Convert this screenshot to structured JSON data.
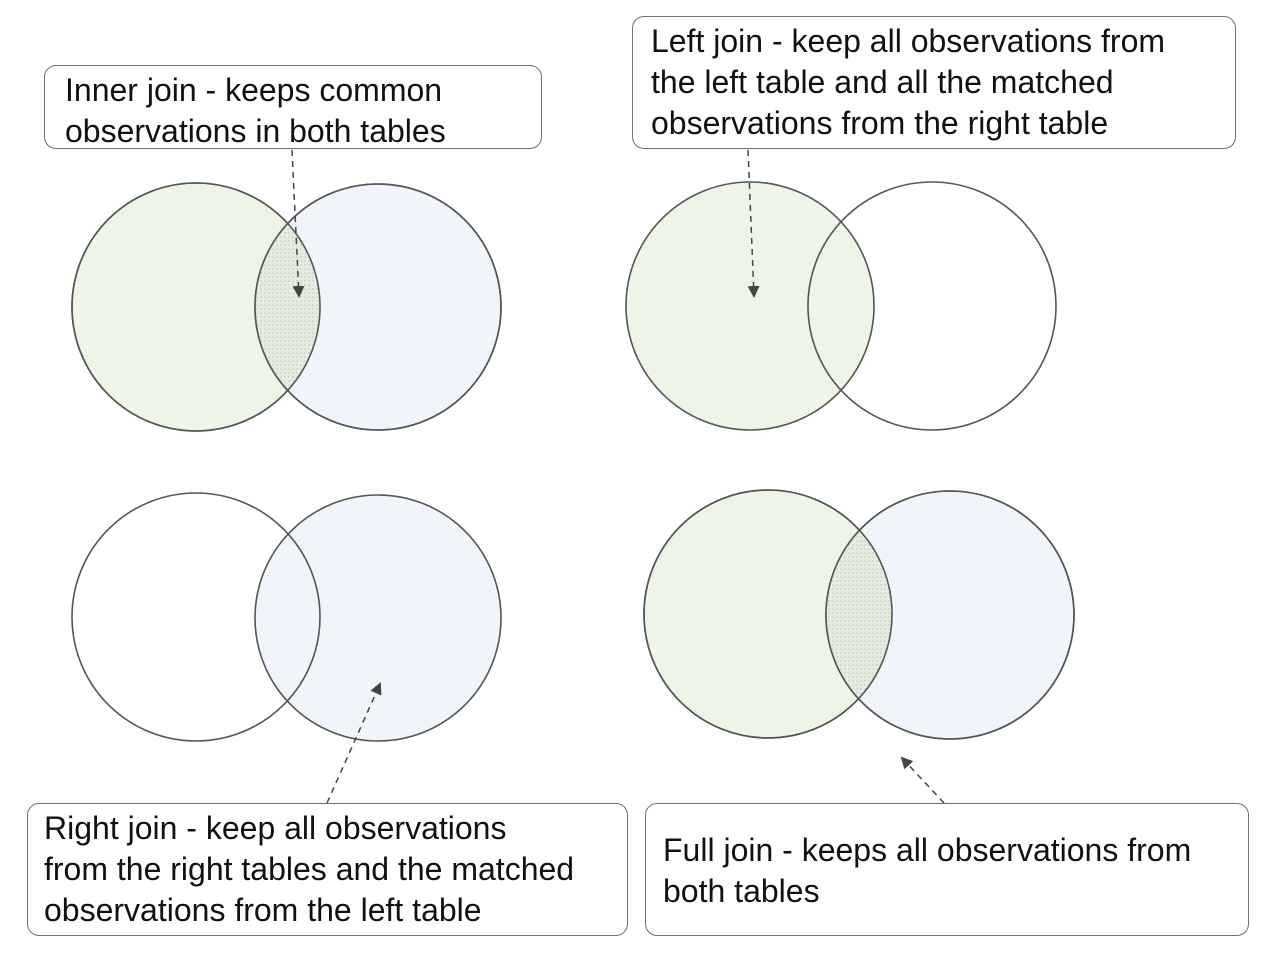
{
  "callouts": {
    "inner": {
      "lines": [
        "Inner join - keeps common",
        "observations in both tables"
      ]
    },
    "left": {
      "lines": [
        "Left join - keep all observations from",
        "the left table and all the matched",
        "observations from the right table"
      ]
    },
    "right": {
      "lines": [
        "Right join - keep all observations",
        "from the right tables and the matched",
        "observations from the left table"
      ]
    },
    "full": {
      "lines": [
        "Full join - keeps all observations from",
        "both tables"
      ]
    }
  },
  "colors": {
    "left_fill": "#edf5e7",
    "right_fill": "#eff5fa",
    "overlap_fill": "#e6eedf",
    "outline": "#555555",
    "arrow": "#444444",
    "box_border": "#6f6f6f"
  }
}
